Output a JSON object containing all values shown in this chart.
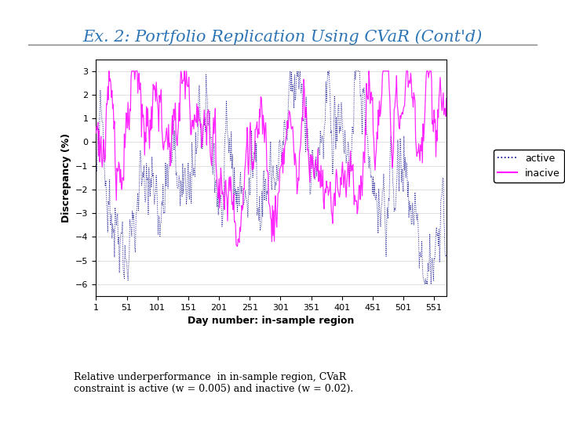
{
  "title": "Ex. 2: Portfolio Replication Using CVaR (Cont'd)",
  "title_color": "#2E75B6",
  "xlabel": "Day number: in-sample region",
  "ylabel": "Discrepancy (%)",
  "xlim": [
    1,
    571
  ],
  "ylim": [
    -6.5,
    3.5
  ],
  "yticks": [
    -6,
    -5,
    -4,
    -3,
    -2,
    -1,
    0,
    1,
    2,
    3
  ],
  "xticks": [
    1,
    51,
    101,
    151,
    201,
    251,
    301,
    351,
    401,
    451,
    501,
    551
  ],
  "active_color": "#00008B",
  "inactive_color": "#FF00FF",
  "caption": "Relative underperformance  in in-sample region, CVaR\nconstraint is active (w = 0.005) and inactive (w = 0.02).",
  "background_color": "#FFFFFF",
  "plot_bg_color": "#FFFFFF",
  "n_points": 571,
  "seed_active": 42,
  "seed_inactive": 123
}
